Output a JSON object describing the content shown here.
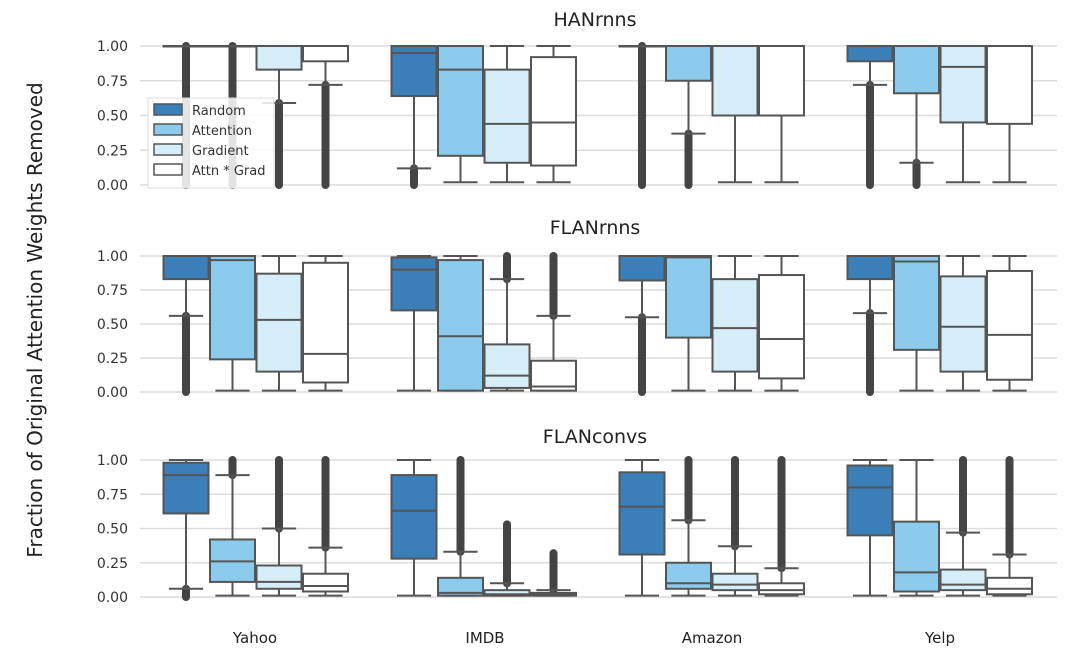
{
  "chart_data": {
    "type": "box",
    "ylabel": "Fraction of Original Attention Weights Removed",
    "categories": [
      "Yahoo",
      "IMDB",
      "Amazon",
      "Yelp"
    ],
    "yticks": [
      "1.00",
      "0.75",
      "0.50",
      "0.25",
      "0.00"
    ],
    "ylim": [
      0,
      1
    ],
    "legend": {
      "placement": "upper-left of top panel",
      "entries": [
        {
          "name": "Random",
          "color": "#3a7fb8"
        },
        {
          "name": "Attention",
          "color": "#8ccbec"
        },
        {
          "name": "Gradient",
          "color": "#d6eef8"
        },
        {
          "name": "Attn * Grad",
          "color": "#ffffff"
        }
      ]
    },
    "panels": [
      {
        "title": "HANrnns",
        "boxes": [
          [
            {
              "lo": 1,
              "q1": 1,
              "med": 1,
              "q3": 1,
              "hi": 1,
              "fl": [
                0,
                1
              ]
            },
            {
              "lo": 1,
              "q1": 1,
              "med": 1,
              "q3": 1,
              "hi": 1,
              "fl": [
                0,
                1
              ]
            },
            {
              "lo": 0.59,
              "q1": 0.83,
              "med": 1,
              "q3": 1,
              "hi": 1,
              "fl": [
                0,
                0.59
              ]
            },
            {
              "lo": 0.72,
              "q1": 0.89,
              "med": 1,
              "q3": 1,
              "hi": 1,
              "fl": [
                0,
                0.72
              ]
            }
          ],
          [
            {
              "lo": 0.12,
              "q1": 0.64,
              "med": 0.95,
              "q3": 1,
              "hi": 1,
              "fl": [
                0,
                0.12
              ]
            },
            {
              "lo": 0.02,
              "q1": 0.21,
              "med": 0.83,
              "q3": 1,
              "hi": 1,
              "fl": null
            },
            {
              "lo": 0.02,
              "q1": 0.16,
              "med": 0.44,
              "q3": 0.83,
              "hi": 1,
              "fl": null
            },
            {
              "lo": 0.02,
              "q1": 0.14,
              "med": 0.45,
              "q3": 0.92,
              "hi": 1,
              "fl": null
            }
          ],
          [
            {
              "lo": 1,
              "q1": 1,
              "med": 1,
              "q3": 1,
              "hi": 1,
              "fl": [
                0,
                1
              ]
            },
            {
              "lo": 0.37,
              "q1": 0.75,
              "med": 1,
              "q3": 1,
              "hi": 1,
              "fl": [
                0,
                0.37
              ]
            },
            {
              "lo": 0.02,
              "q1": 0.5,
              "med": 1,
              "q3": 1,
              "hi": 1,
              "fl": null
            },
            {
              "lo": 0.02,
              "q1": 0.5,
              "med": 1,
              "q3": 1,
              "hi": 1,
              "fl": null
            }
          ],
          [
            {
              "lo": 0.72,
              "q1": 0.89,
              "med": 1,
              "q3": 1,
              "hi": 1,
              "fl": [
                0,
                0.72
              ]
            },
            {
              "lo": 0.16,
              "q1": 0.66,
              "med": 1,
              "q3": 1,
              "hi": 1,
              "fl": [
                0,
                0.16
              ]
            },
            {
              "lo": 0.02,
              "q1": 0.45,
              "med": 0.85,
              "q3": 1,
              "hi": 1,
              "fl": null
            },
            {
              "lo": 0.02,
              "q1": 0.44,
              "med": 1,
              "q3": 1,
              "hi": 1,
              "fl": null
            }
          ]
        ]
      },
      {
        "title": "FLANrnns",
        "boxes": [
          [
            {
              "lo": 0.56,
              "q1": 0.83,
              "med": 1,
              "q3": 1,
              "hi": 1,
              "fl": [
                0,
                0.56
              ]
            },
            {
              "lo": 0.01,
              "q1": 0.24,
              "med": 0.97,
              "q3": 1,
              "hi": 1,
              "fl": null
            },
            {
              "lo": 0.01,
              "q1": 0.15,
              "med": 0.53,
              "q3": 0.87,
              "hi": 1,
              "fl": null
            },
            {
              "lo": 0.01,
              "q1": 0.07,
              "med": 0.28,
              "q3": 0.95,
              "hi": 1,
              "fl": null
            }
          ],
          [
            {
              "lo": 0.01,
              "q1": 0.6,
              "med": 0.9,
              "q3": 0.99,
              "hi": 1,
              "fl": null
            },
            {
              "lo": 0.01,
              "q1": 0.01,
              "med": 0.41,
              "q3": 0.97,
              "hi": 1,
              "fl": null
            },
            {
              "lo": 0.01,
              "q1": 0.03,
              "med": 0.12,
              "q3": 0.35,
              "hi": 0.83,
              "fl": [
                0.83,
                1
              ]
            },
            {
              "lo": 0.01,
              "q1": 0.01,
              "med": 0.04,
              "q3": 0.23,
              "hi": 0.56,
              "fl": [
                0.56,
                1
              ]
            }
          ],
          [
            {
              "lo": 0.55,
              "q1": 0.82,
              "med": 1,
              "q3": 1,
              "hi": 1,
              "fl": [
                0,
                0.55
              ]
            },
            {
              "lo": 0.01,
              "q1": 0.4,
              "med": 0.99,
              "q3": 1,
              "hi": 1,
              "fl": null
            },
            {
              "lo": 0.01,
              "q1": 0.15,
              "med": 0.47,
              "q3": 0.83,
              "hi": 1,
              "fl": null
            },
            {
              "lo": 0.01,
              "q1": 0.1,
              "med": 0.39,
              "q3": 0.86,
              "hi": 1,
              "fl": null
            }
          ],
          [
            {
              "lo": 0.58,
              "q1": 0.83,
              "med": 1,
              "q3": 1,
              "hi": 1,
              "fl": [
                0,
                0.58
              ]
            },
            {
              "lo": 0.01,
              "q1": 0.31,
              "med": 0.96,
              "q3": 1,
              "hi": 1,
              "fl": null
            },
            {
              "lo": 0.01,
              "q1": 0.15,
              "med": 0.48,
              "q3": 0.85,
              "hi": 1,
              "fl": null
            },
            {
              "lo": 0.01,
              "q1": 0.09,
              "med": 0.42,
              "q3": 0.89,
              "hi": 1,
              "fl": null
            }
          ]
        ]
      },
      {
        "title": "FLANconvs",
        "boxes": [
          [
            {
              "lo": 0.06,
              "q1": 0.61,
              "med": 0.89,
              "q3": 0.98,
              "hi": 1,
              "fl": [
                0,
                0.06
              ]
            },
            {
              "lo": 0.01,
              "q1": 0.11,
              "med": 0.26,
              "q3": 0.42,
              "hi": 0.89,
              "fl": [
                0.89,
                1
              ]
            },
            {
              "lo": 0.01,
              "q1": 0.06,
              "med": 0.11,
              "q3": 0.23,
              "hi": 0.5,
              "fl": [
                0.5,
                1
              ]
            },
            {
              "lo": 0.01,
              "q1": 0.04,
              "med": 0.08,
              "q3": 0.17,
              "hi": 0.36,
              "fl": [
                0.36,
                1
              ]
            }
          ],
          [
            {
              "lo": 0.01,
              "q1": 0.28,
              "med": 0.63,
              "q3": 0.89,
              "hi": 1,
              "fl": null
            },
            {
              "lo": 0.01,
              "q1": 0.01,
              "med": 0.03,
              "q3": 0.14,
              "hi": 0.33,
              "fl": [
                0.33,
                1
              ]
            },
            {
              "lo": 0.01,
              "q1": 0.01,
              "med": 0.02,
              "q3": 0.05,
              "hi": 0.1,
              "fl": [
                0.1,
                0.53
              ]
            },
            {
              "lo": 0.01,
              "q1": 0.01,
              "med": 0.02,
              "q3": 0.03,
              "hi": 0.05,
              "fl": [
                0.05,
                0.32
              ]
            }
          ],
          [
            {
              "lo": 0.01,
              "q1": 0.31,
              "med": 0.66,
              "q3": 0.91,
              "hi": 1,
              "fl": null
            },
            {
              "lo": 0.01,
              "q1": 0.06,
              "med": 0.1,
              "q3": 0.25,
              "hi": 0.56,
              "fl": [
                0.56,
                1
              ]
            },
            {
              "lo": 0.01,
              "q1": 0.05,
              "med": 0.09,
              "q3": 0.17,
              "hi": 0.37,
              "fl": [
                0.37,
                1
              ]
            },
            {
              "lo": 0.01,
              "q1": 0.02,
              "med": 0.05,
              "q3": 0.1,
              "hi": 0.21,
              "fl": [
                0.21,
                1
              ]
            }
          ],
          [
            {
              "lo": 0.01,
              "q1": 0.45,
              "med": 0.8,
              "q3": 0.96,
              "hi": 1,
              "fl": null
            },
            {
              "lo": 0.01,
              "q1": 0.04,
              "med": 0.18,
              "q3": 0.55,
              "hi": 1,
              "fl": null
            },
            {
              "lo": 0.01,
              "q1": 0.05,
              "med": 0.09,
              "q3": 0.2,
              "hi": 0.47,
              "fl": [
                0.47,
                1
              ]
            },
            {
              "lo": 0.01,
              "q1": 0.02,
              "med": 0.06,
              "q3": 0.14,
              "hi": 0.31,
              "fl": [
                0.31,
                1
              ]
            }
          ]
        ]
      }
    ]
  }
}
